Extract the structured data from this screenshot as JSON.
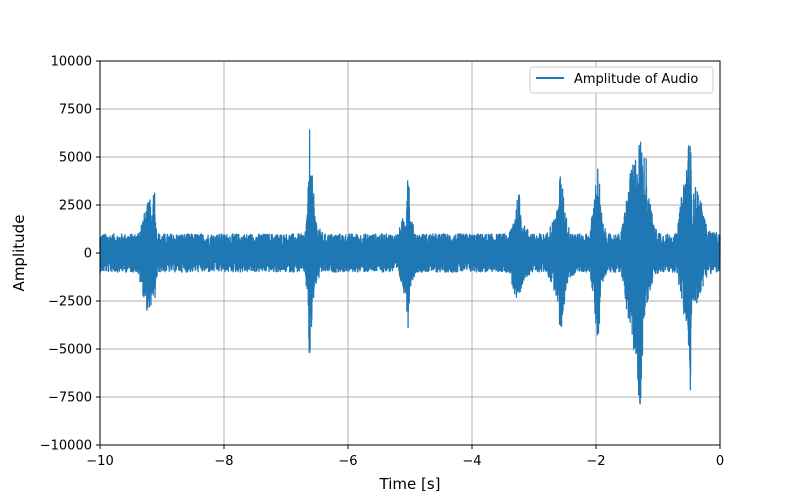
{
  "colors": {
    "series": "#1f77b4",
    "grid": "#b0b0b0",
    "axes": "#000000",
    "legend_border": "#cccccc",
    "background": "#ffffff"
  },
  "chart_data": {
    "type": "line",
    "title": "",
    "xlabel": "Time [s]",
    "ylabel": "Amplitude",
    "xlim": [
      -10,
      0
    ],
    "ylim": [
      -10000,
      10000
    ],
    "x_ticks": [
      -10,
      -8,
      -6,
      -4,
      -2,
      0
    ],
    "x_tick_labels": [
      "−10",
      "−8",
      "−6",
      "−4",
      "−2",
      "0"
    ],
    "y_ticks": [
      -10000,
      -7500,
      -5000,
      -2500,
      0,
      2500,
      5000,
      7500,
      10000
    ],
    "y_tick_labels": [
      "−10000",
      "−7500",
      "−5000",
      "−2500",
      "0",
      "2500",
      "5000",
      "7500",
      "10000"
    ],
    "grid": true,
    "legend": {
      "placement": "top-right",
      "entries": [
        "Amplitude of Audio"
      ]
    },
    "series": [
      {
        "name": "Amplitude of Audio",
        "baseline_noise_amplitude": 1000,
        "x": [
          -10.0,
          -9.8,
          -9.6,
          -9.4,
          -9.2,
          -9.16,
          -9.13,
          -9.1,
          -9.05,
          -9.0,
          -8.8,
          -8.6,
          -8.4,
          -8.2,
          -8.0,
          -7.8,
          -7.6,
          -7.4,
          -7.2,
          -7.0,
          -6.8,
          -6.7,
          -6.65,
          -6.62,
          -6.58,
          -6.55,
          -6.5,
          -6.4,
          -6.2,
          -6.0,
          -5.8,
          -5.6,
          -5.4,
          -5.2,
          -5.06,
          -5.03,
          -5.0,
          -4.95,
          -4.9,
          -4.8,
          -4.6,
          -4.4,
          -4.2,
          -4.0,
          -3.8,
          -3.6,
          -3.4,
          -3.24,
          -3.21,
          -3.15,
          -3.0,
          -2.8,
          -2.62,
          -2.58,
          -2.52,
          -2.45,
          -2.3,
          -2.1,
          -1.96,
          -1.93,
          -1.88,
          -1.8,
          -1.6,
          -1.45,
          -1.27,
          -1.24,
          -1.2,
          -1.12,
          -1.05,
          -0.9,
          -0.7,
          -0.52,
          -0.48,
          -0.45,
          -0.38,
          -0.2,
          0.0
        ],
        "envelope_max": [
          1000,
          1000,
          1000,
          1000,
          2900,
          1800,
          4600,
          1500,
          1000,
          1000,
          1000,
          1000,
          1000,
          1000,
          1000,
          1000,
          1000,
          1000,
          1000,
          1000,
          1000,
          1000,
          2400,
          6700,
          4200,
          3000,
          1500,
          1000,
          1000,
          1000,
          1000,
          1000,
          1000,
          1000,
          2400,
          6000,
          2000,
          1500,
          1000,
          1000,
          1000,
          1000,
          1000,
          1000,
          1000,
          1000,
          1000,
          3200,
          2200,
          1400,
          1000,
          1000,
          2300,
          4300,
          3000,
          1400,
          1000,
          1000,
          5000,
          2700,
          1400,
          1000,
          1000,
          4100,
          6300,
          4800,
          5500,
          2500,
          1300,
          1000,
          1000,
          5500,
          6400,
          2800,
          3700,
          1200,
          1000
        ],
        "envelope_min": [
          -1000,
          -1000,
          -1000,
          -1000,
          -3600,
          -2000,
          -3600,
          -1700,
          -1000,
          -1000,
          -1000,
          -1000,
          -1000,
          -1000,
          -1000,
          -1000,
          -1000,
          -1000,
          -1000,
          -1000,
          -1000,
          -1000,
          -2500,
          -6500,
          -3800,
          -2200,
          -1500,
          -1000,
          -1000,
          -1000,
          -1000,
          -1000,
          -1000,
          -1000,
          -2500,
          -4100,
          -1800,
          -1400,
          -1000,
          -1000,
          -1000,
          -1000,
          -1000,
          -1000,
          -1000,
          -1000,
          -1000,
          -3300,
          -2300,
          -1300,
          -1000,
          -1000,
          -2400,
          -4700,
          -2900,
          -1400,
          -1000,
          -1000,
          -4900,
          -2500,
          -1300,
          -1000,
          -1000,
          -4100,
          -8500,
          -4000,
          -3000,
          -1900,
          -1200,
          -1000,
          -1000,
          -4500,
          -7600,
          -3000,
          -2700,
          -1100,
          -1000
        ]
      }
    ]
  }
}
